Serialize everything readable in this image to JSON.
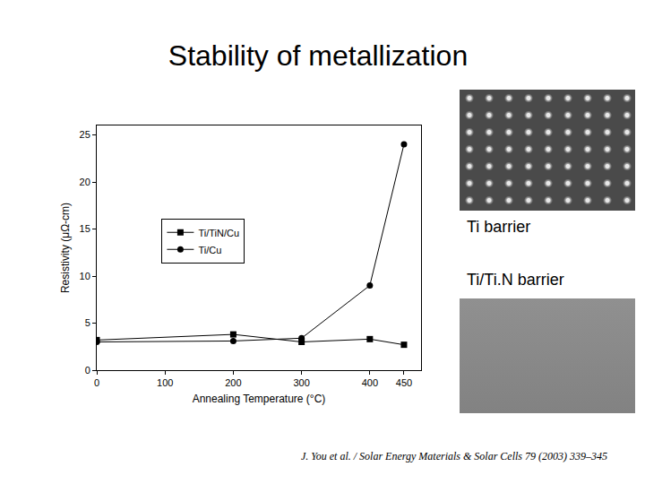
{
  "title": "Stability of metallization",
  "captions": [
    "Ti barrier",
    "Ti/Ti.N barrier"
  ],
  "citation": "J. You et al. / Solar Energy Materials & Solar Cells 79 (2003) 339–345",
  "chart_data": {
    "type": "line",
    "x_label": "Annealing Temperature (°C)",
    "y_label": "Resistivity (μΩ-cm)",
    "x": [
      0,
      200,
      300,
      400,
      450
    ],
    "series": [
      {
        "name": "Ti/TiN/Cu",
        "color": "#000000",
        "marker": "square",
        "line_style": "solid",
        "values": [
          3.2,
          3.8,
          3.0,
          3.3,
          2.7
        ]
      },
      {
        "name": "Ti/Cu",
        "color": "#000000",
        "marker": "circle",
        "line_style": "solid",
        "values": [
          3.0,
          3.1,
          3.4,
          9.0,
          24.0
        ]
      }
    ],
    "xlim": [
      0,
      475
    ],
    "xticks": [
      0,
      100,
      200,
      300,
      400,
      450
    ],
    "ylim": [
      0,
      26
    ],
    "yticks": [
      0,
      5,
      10,
      15,
      20,
      25
    ],
    "grid": false,
    "legend": "center left"
  }
}
